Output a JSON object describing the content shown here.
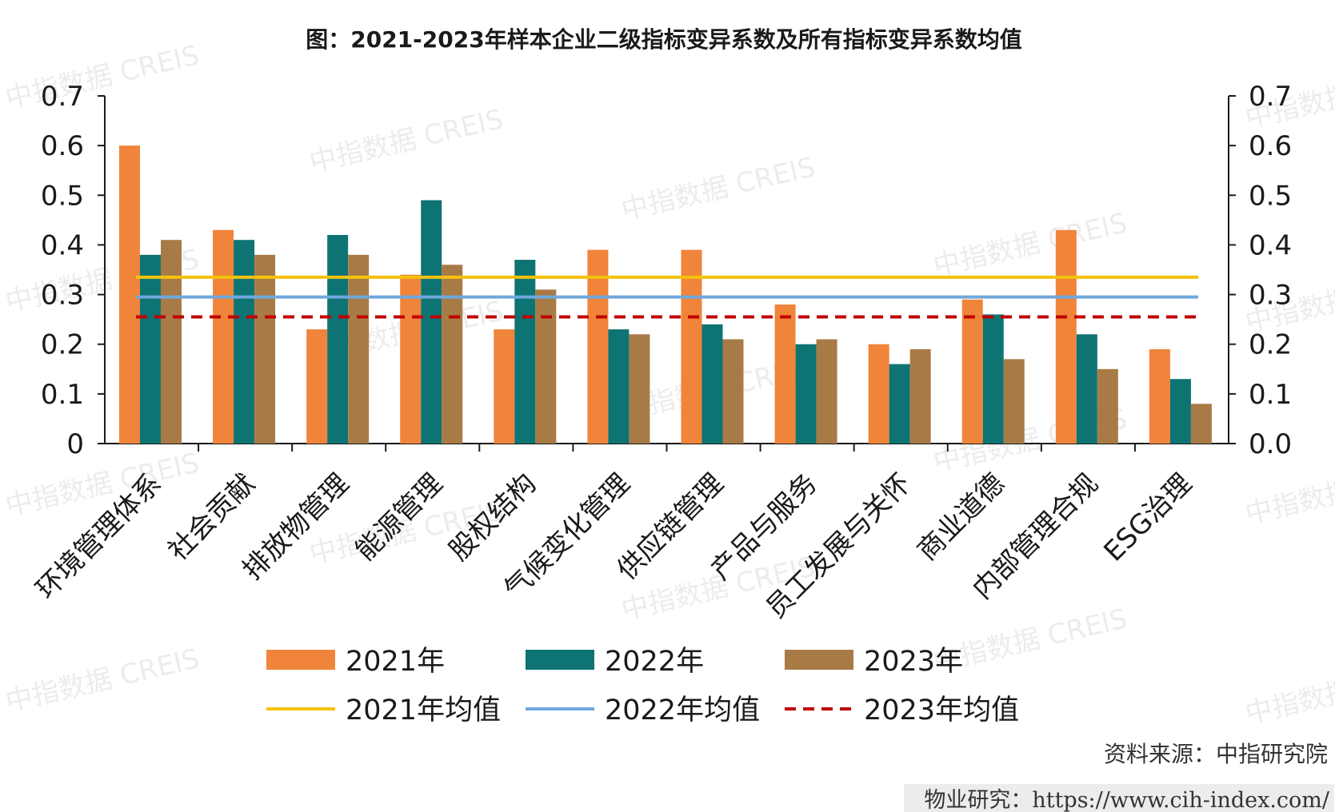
{
  "colors": {
    "s2021": "#F0843A",
    "s2022": "#0E7373",
    "s2023": "#A87B46",
    "avg2021": "#F4C20D",
    "avg2022": "#6FA8DC",
    "avg2023": "#C00000",
    "axis": "#1a1a1a"
  },
  "watermark": "中指数据 CREIS",
  "source": "资料来源：中指研究院",
  "footer": {
    "prefix": "物业研究：",
    "url": "https://www.cih-index.com/"
  },
  "chart_data": {
    "type": "bar",
    "title": "图：2021-2023年样本企业二级指标变异系数及所有指标变异系数均值",
    "categories": [
      "环境管理体系",
      "社会贡献",
      "排放物管理",
      "能源管理",
      "股权结构",
      "气候变化管理",
      "供应链管理",
      "产品与服务",
      "员工发展与关怀",
      "商业道德",
      "内部管理合规",
      "ESG治理"
    ],
    "series": [
      {
        "name": "2021年",
        "values": [
          0.6,
          0.43,
          0.23,
          0.34,
          0.23,
          0.39,
          0.39,
          0.28,
          0.2,
          0.29,
          0.43,
          0.19
        ]
      },
      {
        "name": "2022年",
        "values": [
          0.38,
          0.41,
          0.42,
          0.49,
          0.37,
          0.23,
          0.24,
          0.2,
          0.16,
          0.26,
          0.22,
          0.13
        ]
      },
      {
        "name": "2023年",
        "values": [
          0.41,
          0.38,
          0.38,
          0.36,
          0.31,
          0.22,
          0.21,
          0.21,
          0.19,
          0.17,
          0.15,
          0.08
        ]
      }
    ],
    "mean_lines": [
      {
        "name": "2021年均值",
        "value": 0.335,
        "style": "solid"
      },
      {
        "name": "2022年均值",
        "value": 0.295,
        "style": "solid"
      },
      {
        "name": "2023年均值",
        "value": 0.255,
        "style": "dashed"
      }
    ],
    "ylim": [
      0,
      0.7
    ],
    "yticks_left": [
      "0",
      "0.1",
      "0.2",
      "0.3",
      "0.4",
      "0.5",
      "0.6",
      "0.7"
    ],
    "yticks_right": [
      "0.0",
      "0.1",
      "0.2",
      "0.3",
      "0.4",
      "0.5",
      "0.6",
      "0.7"
    ],
    "xlabel": "",
    "ylabel": "",
    "grid": false,
    "legend_position": "bottom"
  }
}
